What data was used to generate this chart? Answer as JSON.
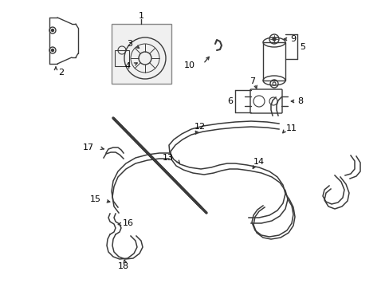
{
  "bg_color": "#ffffff",
  "line_color": "#3a3a3a",
  "label_color": "#000000",
  "label_fontsize": 8,
  "fig_width": 4.89,
  "fig_height": 3.6,
  "dpi": 100
}
